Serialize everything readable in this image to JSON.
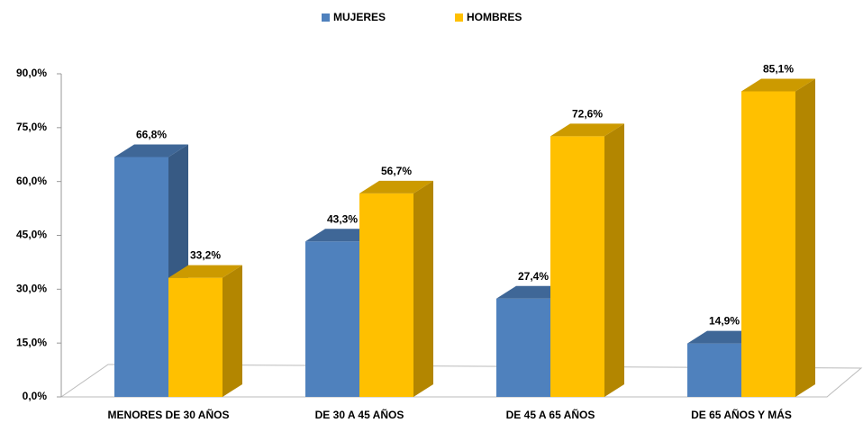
{
  "chart_data": {
    "type": "bar3d",
    "categories": [
      "MENORES DE 30 AÑOS",
      "DE 30 A 45 AÑOS",
      "DE 45 A 65 AÑOS",
      "DE 65 AÑOS Y MÁS"
    ],
    "series": [
      {
        "name": "MUJERES",
        "color": "#4f81bd",
        "values": [
          66.8,
          43.3,
          27.4,
          14.9
        ],
        "value_labels": [
          "66,8%",
          "43,3%",
          "27,4%",
          "14,9%"
        ]
      },
      {
        "name": "HOMBRES",
        "color": "#ffc000",
        "values": [
          33.2,
          56.7,
          72.6,
          85.1
        ],
        "value_labels": [
          "33,2%",
          "56,7%",
          "72,6%",
          "85,1%"
        ]
      }
    ],
    "ylim": [
      0,
      90
    ],
    "yticks": [
      {
        "value": 0,
        "label": "0,0%"
      },
      {
        "value": 15,
        "label": "15,0%"
      },
      {
        "value": 30,
        "label": "30,0%"
      },
      {
        "value": 45,
        "label": "45,0%"
      },
      {
        "value": 60,
        "label": "60,0%"
      },
      {
        "value": 75,
        "label": "75,0%"
      },
      {
        "value": 90,
        "label": "90,0%"
      }
    ],
    "legend": "top"
  }
}
